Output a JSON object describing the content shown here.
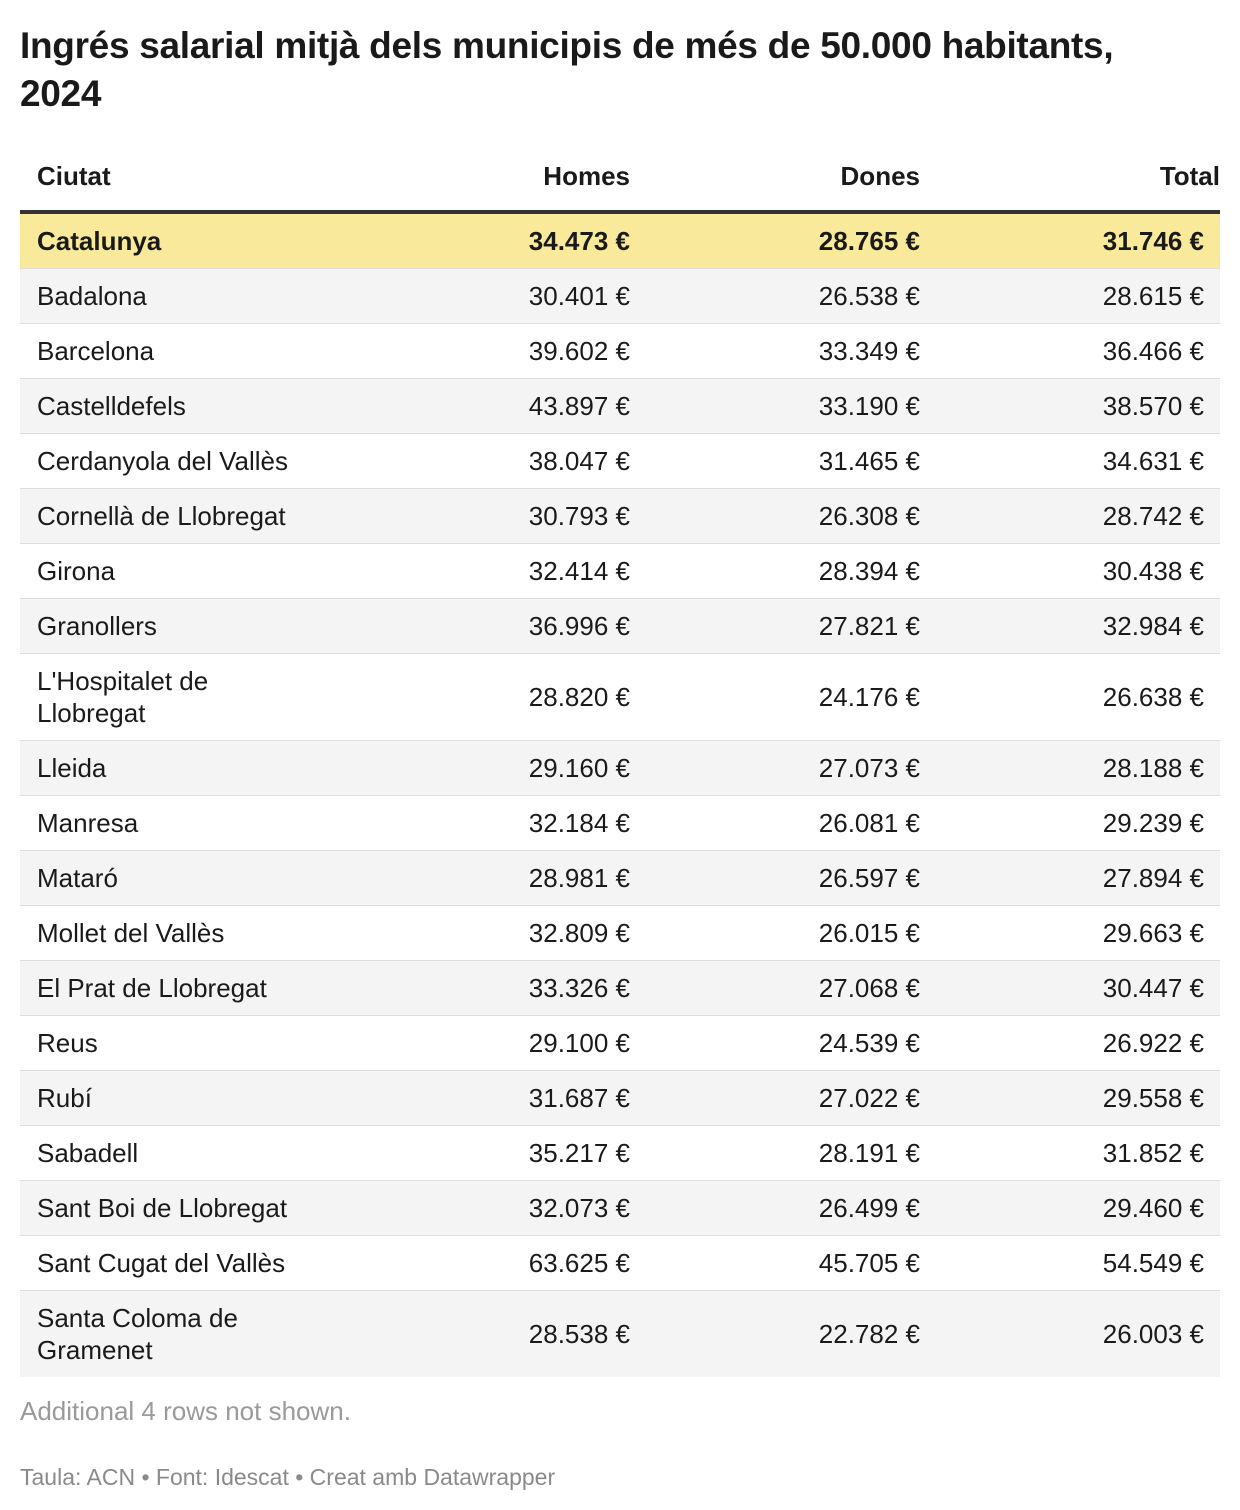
{
  "title": "Ingrés salarial mitjà dels municipis de més de 50.000 habitants, 2024",
  "chart_data": {
    "type": "table",
    "title": "Ingrés salarial mitjà dels municipis de més de 50.000 habitants, 2024",
    "columns": [
      "Ciutat",
      "Homes",
      "Dones",
      "Total"
    ],
    "unit": "€",
    "highlight_row": "Catalunya",
    "rows": [
      {
        "city": "Catalunya",
        "homes": "34.473 €",
        "dones": "28.765 €",
        "total": "31.746 €",
        "highlight": true
      },
      {
        "city": "Badalona",
        "homes": "30.401 €",
        "dones": "26.538 €",
        "total": "28.615 €"
      },
      {
        "city": "Barcelona",
        "homes": "39.602 €",
        "dones": "33.349 €",
        "total": "36.466 €"
      },
      {
        "city": "Castelldefels",
        "homes": "43.897 €",
        "dones": "33.190 €",
        "total": "38.570 €"
      },
      {
        "city": "Cerdanyola del Vallès",
        "homes": "38.047 €",
        "dones": "31.465 €",
        "total": "34.631 €"
      },
      {
        "city": "Cornellà de Llobregat",
        "homes": "30.793 €",
        "dones": "26.308 €",
        "total": "28.742 €"
      },
      {
        "city": "Girona",
        "homes": "32.414 €",
        "dones": "28.394 €",
        "total": "30.438 €"
      },
      {
        "city": "Granollers",
        "homes": "36.996 €",
        "dones": "27.821 €",
        "total": "32.984 €"
      },
      {
        "city": "L'Hospitalet de Llobregat",
        "homes": "28.820 €",
        "dones": "24.176 €",
        "total": "26.638 €"
      },
      {
        "city": "Lleida",
        "homes": "29.160 €",
        "dones": "27.073 €",
        "total": "28.188 €"
      },
      {
        "city": "Manresa",
        "homes": "32.184 €",
        "dones": "26.081 €",
        "total": "29.239 €"
      },
      {
        "city": "Mataró",
        "homes": "28.981 €",
        "dones": "26.597 €",
        "total": "27.894 €"
      },
      {
        "city": "Mollet del Vallès",
        "homes": "32.809 €",
        "dones": "26.015 €",
        "total": "29.663 €"
      },
      {
        "city": "El Prat de Llobregat",
        "homes": "33.326 €",
        "dones": "27.068 €",
        "total": "30.447 €"
      },
      {
        "city": "Reus",
        "homes": "29.100 €",
        "dones": "24.539 €",
        "total": "26.922 €"
      },
      {
        "city": "Rubí",
        "homes": "31.687 €",
        "dones": "27.022 €",
        "total": "29.558 €"
      },
      {
        "city": "Sabadell",
        "homes": "35.217 €",
        "dones": "28.191 €",
        "total": "31.852 €"
      },
      {
        "city": "Sant Boi de Llobregat",
        "homes": "32.073 €",
        "dones": "26.499 €",
        "total": "29.460 €"
      },
      {
        "city": "Sant Cugat del Vallès",
        "homes": "63.625 €",
        "dones": "45.705 €",
        "total": "54.549 €"
      },
      {
        "city": "Santa Coloma de Gramenet",
        "homes": "28.538 €",
        "dones": "22.782 €",
        "total": "26.003 €"
      }
    ]
  },
  "footer": {
    "note": "Additional 4 rows not shown.",
    "credits": "Taula: ACN • Font: Idescat • Creat amb Datawrapper"
  },
  "colors": {
    "highlight_row_bg": "#F8E99B",
    "zebra_row_bg": "#F4F4F4",
    "header_rule": "#333333",
    "row_separator": "#DDDDDD",
    "text": "#1A1A1A",
    "muted_text": "#9A9A9A",
    "credits_text": "#8A8A8A"
  }
}
